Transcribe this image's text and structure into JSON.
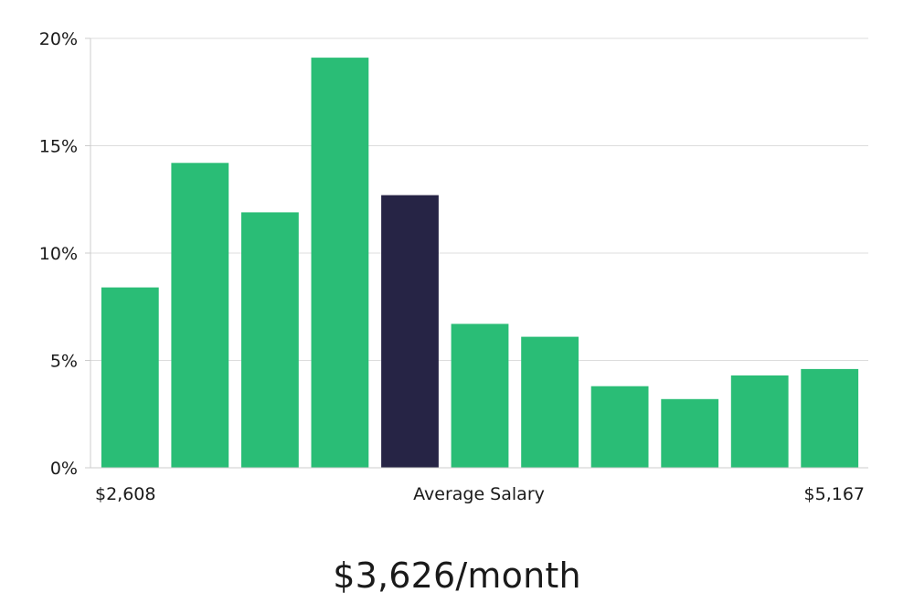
{
  "chart_data": {
    "type": "bar",
    "values": [
      8.4,
      14.2,
      11.9,
      19.1,
      12.7,
      6.7,
      6.1,
      3.8,
      3.2,
      4.3,
      4.6
    ],
    "highlight_index": 4,
    "ylim": [
      0,
      20
    ],
    "y_ticks": [
      {
        "value": 0,
        "label": "0%"
      },
      {
        "value": 5,
        "label": "5%"
      },
      {
        "value": 10,
        "label": "10%"
      },
      {
        "value": 15,
        "label": "15%"
      },
      {
        "value": 20,
        "label": "20%"
      }
    ],
    "x_labels": {
      "left": "$2,608",
      "center": "Average Salary",
      "right": "$5,167"
    },
    "grid": true,
    "colors": {
      "bar": "#2abd76",
      "highlight": "#262445",
      "grid": "#dddddd",
      "axis": "#cccccc"
    }
  },
  "headline": "$3,626/month"
}
